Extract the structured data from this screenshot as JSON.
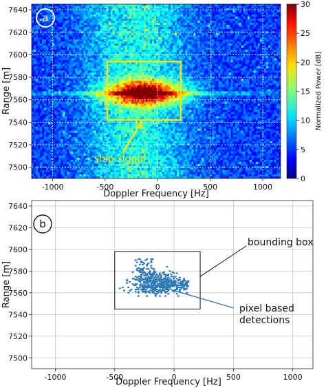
{
  "chart_data": [
    {
      "type": "heatmap",
      "panel_label": "a",
      "xlabel": "Doppler Frequency [Hz]",
      "ylabel": "Range [m]",
      "xlim": [
        -1200,
        1170
      ],
      "ylim": [
        7490,
        7645
      ],
      "x_ticks": [
        -1000,
        -500,
        0,
        500,
        1000
      ],
      "y_ticks": [
        7500,
        7520,
        7540,
        7560,
        7580,
        7600,
        7620,
        7640
      ],
      "grid": true,
      "colormap": "jet",
      "colorbar": {
        "label": "Normalized Power [dB]",
        "range": [
          0,
          30
        ],
        "ticks": [
          0,
          5,
          10,
          15,
          20,
          25,
          30
        ]
      },
      "peak": {
        "x": -120,
        "y": 7566,
        "value": 30
      },
      "annotation": {
        "text": "ship signal",
        "color": "#ffe600",
        "box": {
          "x": [
            -480,
            220
          ],
          "y": [
            7542,
            7594
          ]
        },
        "arrow_to": {
          "x": -150,
          "y": 7541
        }
      }
    },
    {
      "type": "scatter",
      "panel_label": "b",
      "xlabel": "Doppler Frequency [Hz]",
      "ylabel": "Range [m]",
      "xlim": [
        -1200,
        1170
      ],
      "ylim": [
        7490,
        7645
      ],
      "x_ticks": [
        -1000,
        -500,
        0,
        500,
        1000
      ],
      "y_ticks": [
        7500,
        7520,
        7540,
        7560,
        7580,
        7600,
        7620,
        7640
      ],
      "grid": true,
      "series_color": "#2e7ab8",
      "bounding_box": {
        "x": [
          -500,
          220
        ],
        "y": [
          7545,
          7598
        ]
      },
      "cluster": {
        "x_range": [
          -460,
          120
        ],
        "y_range": [
          7552,
          7592
        ],
        "core": {
          "x": -150,
          "y": 7568
        }
      },
      "annotations": [
        {
          "text": "bounding box",
          "arrow_from": {
            "x": 220,
            "y": 7575
          }
        },
        {
          "text": "pixel based\ndetections",
          "arrow_from": {
            "x": -30,
            "y": 7563
          }
        }
      ]
    }
  ]
}
